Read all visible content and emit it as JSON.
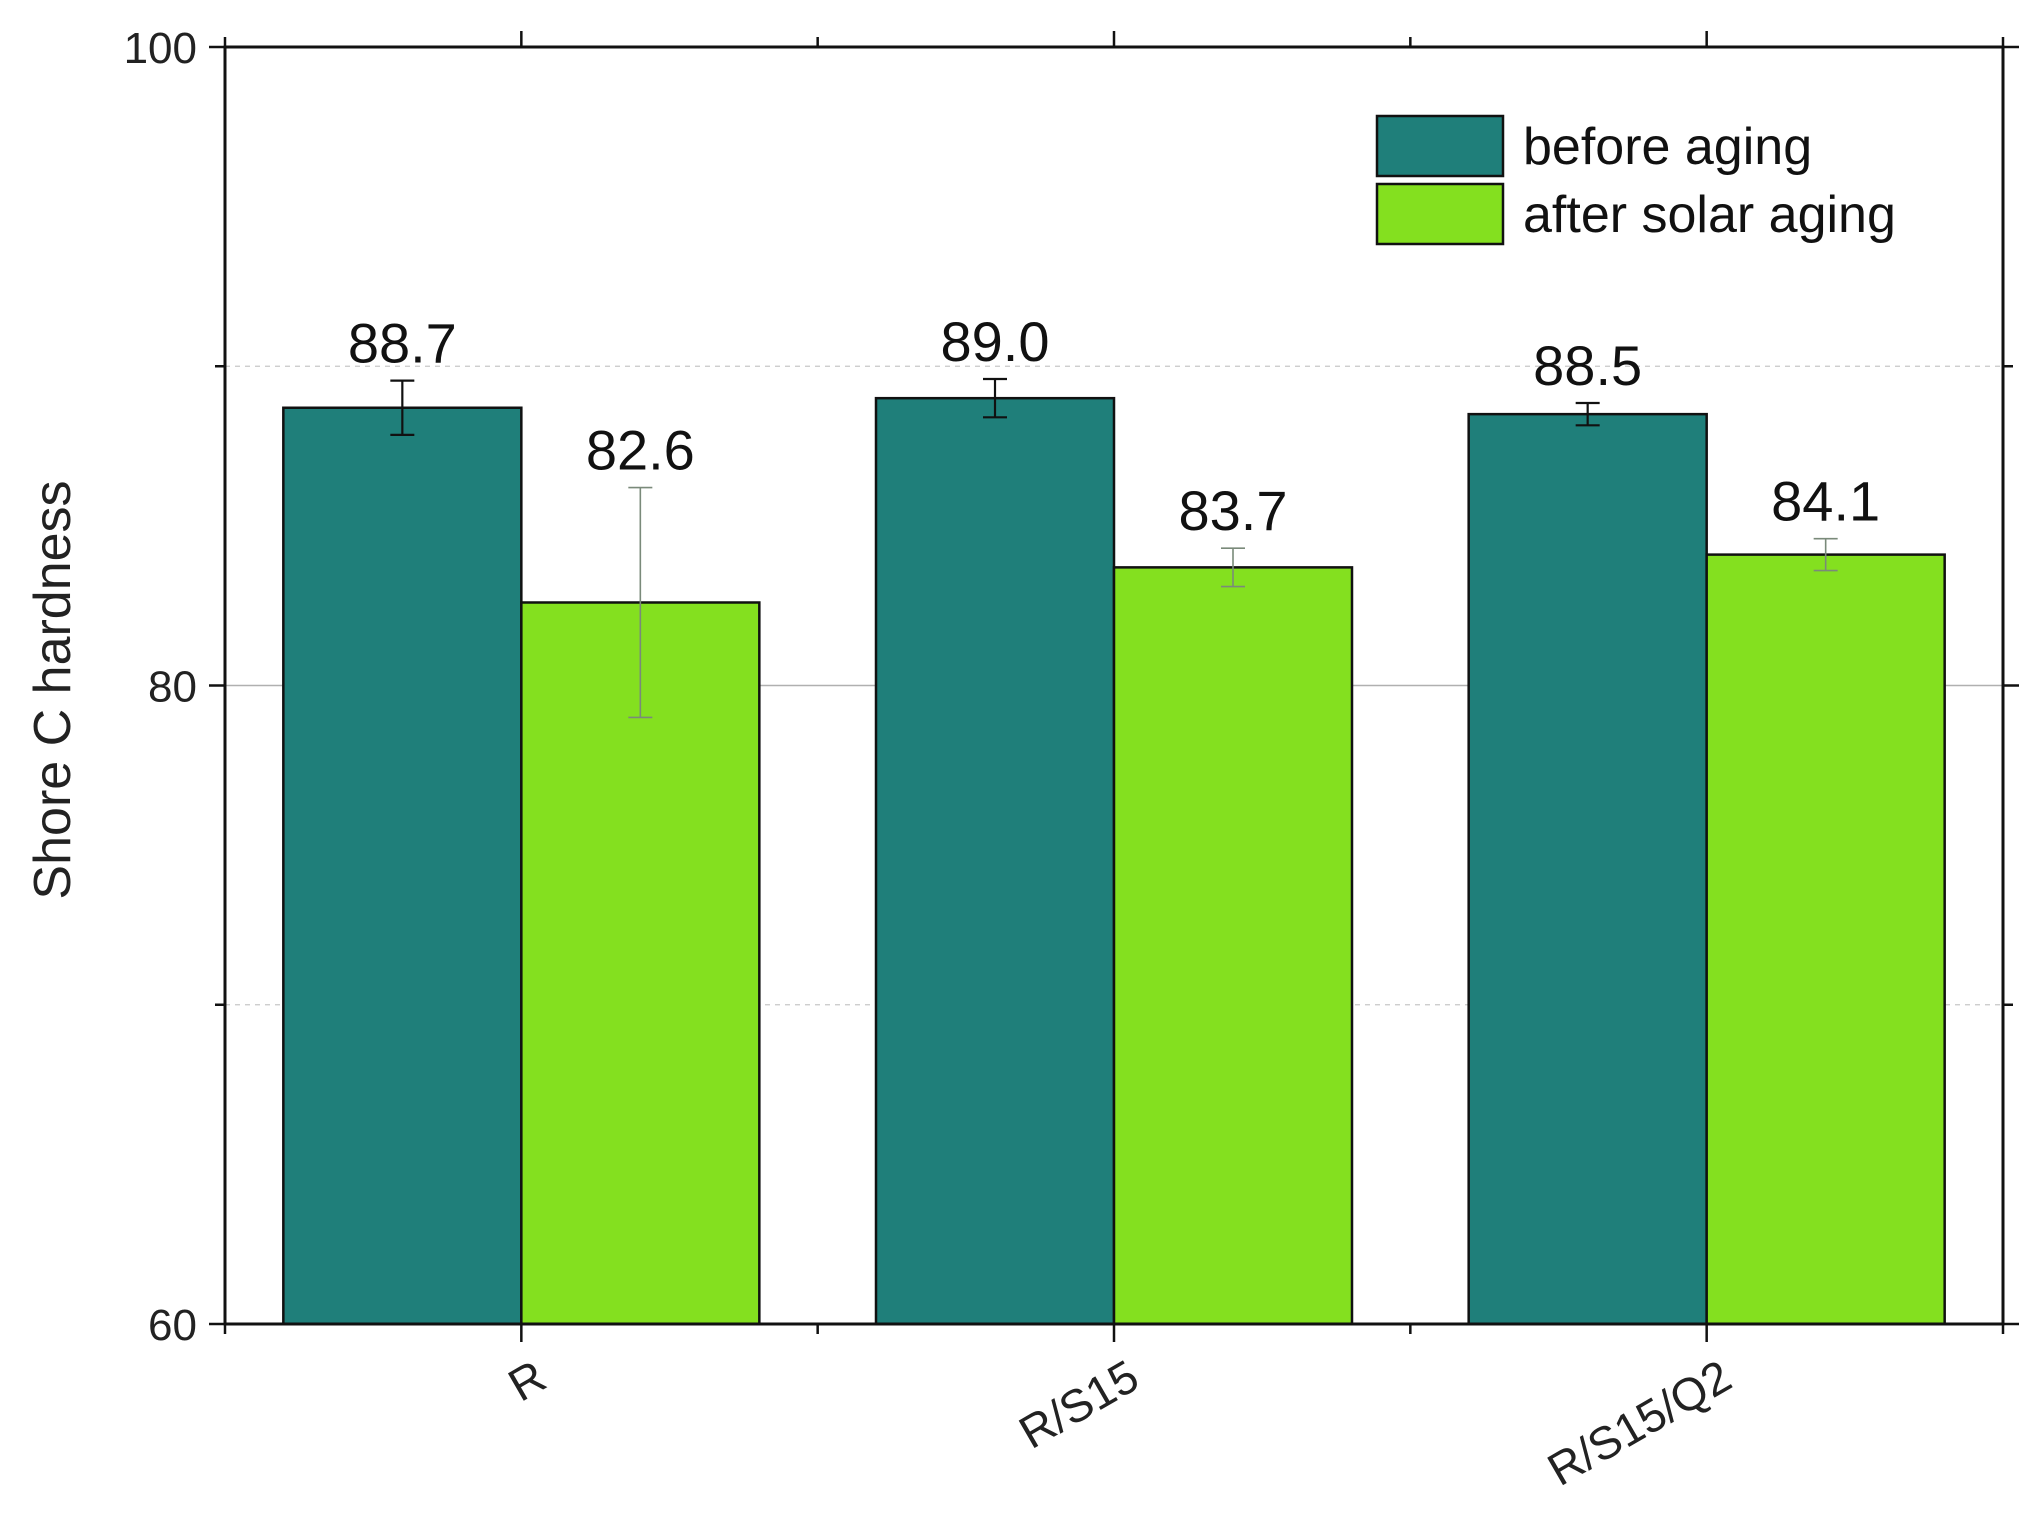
{
  "chart_data": {
    "type": "bar",
    "title": "",
    "xlabel": "",
    "ylabel": "Shore C hardness",
    "ylim": [
      60,
      100
    ],
    "y_ticks": [
      60,
      80,
      100
    ],
    "y_gridlines": [
      70,
      80,
      90
    ],
    "grid": "horizontal",
    "legend_position": "top-right",
    "categories": [
      "R",
      "R/S15",
      "R/S15/Q2"
    ],
    "series": [
      {
        "name": "before aging",
        "color": "#1f7f7a",
        "values": [
          88.7,
          89.0,
          88.5
        ],
        "errors": [
          0.85,
          0.6,
          0.35
        ],
        "labels": [
          "88.7",
          "89.0",
          "88.5"
        ]
      },
      {
        "name": "after solar aging",
        "color": "#84e01f",
        "values": [
          82.6,
          83.7,
          84.1
        ],
        "errors": [
          3.6,
          0.6,
          0.5
        ],
        "labels": [
          "82.6",
          "83.7",
          "84.1"
        ]
      }
    ]
  }
}
